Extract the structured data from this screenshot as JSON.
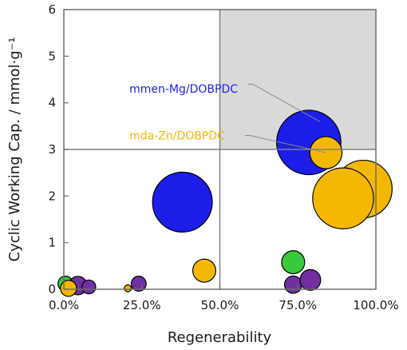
{
  "chart_data": {
    "type": "scatter",
    "subtype": "bubble",
    "xlabel": "Regenerability",
    "ylabel": "Cyclic Working Cap.  /  mmol·g⁻¹",
    "xlim": [
      0,
      100
    ],
    "ylim": [
      0,
      6
    ],
    "x_ticks": [
      "0.0%",
      "25.0%",
      "50.0%",
      "75.0%",
      "100.0%"
    ],
    "y_ticks": [
      "0",
      "1",
      "2",
      "3",
      "4",
      "5",
      "6"
    ],
    "grid": false,
    "reference_lines": {
      "x": 50,
      "y": 3
    },
    "highlight_region": {
      "x": [
        50,
        100
      ],
      "y": [
        3,
        6
      ],
      "color": "#d9d9d9"
    },
    "colors": {
      "blue": "#1d1dea",
      "gold": "#f5b800",
      "green": "#38c93a",
      "purple": "#7030a0"
    },
    "bubbles": [
      {
        "x": 0.5,
        "y": 0.12,
        "size": 1.3,
        "color": "green"
      },
      {
        "x": 2.5,
        "y": 0.04,
        "size": 1.0,
        "color": "purple"
      },
      {
        "x": 4.5,
        "y": 0.08,
        "size": 1.6,
        "color": "purple"
      },
      {
        "x": 8.0,
        "y": 0.05,
        "size": 1.2,
        "color": "purple"
      },
      {
        "x": 1.5,
        "y": 0.02,
        "size": 1.4,
        "color": "gold"
      },
      {
        "x": 20.5,
        "y": 0.02,
        "size": 0.6,
        "color": "gold"
      },
      {
        "x": 24.0,
        "y": 0.12,
        "size": 1.3,
        "color": "purple"
      },
      {
        "x": 38.0,
        "y": 1.87,
        "size": 5.2,
        "color": "blue"
      },
      {
        "x": 45.0,
        "y": 0.4,
        "size": 2.0,
        "color": "gold"
      },
      {
        "x": 73.5,
        "y": 0.58,
        "size": 2.0,
        "color": "green"
      },
      {
        "x": 73.5,
        "y": 0.1,
        "size": 1.5,
        "color": "purple"
      },
      {
        "x": 79.0,
        "y": 0.2,
        "size": 1.8,
        "color": "purple"
      },
      {
        "x": 96.0,
        "y": 2.15,
        "size": 5.0,
        "color": "gold"
      },
      {
        "x": 89.5,
        "y": 1.95,
        "size": 5.3,
        "color": "gold"
      },
      {
        "x": 78.5,
        "y": 3.15,
        "size": 5.6,
        "color": "blue"
      },
      {
        "x": 84.0,
        "y": 2.93,
        "size": 2.8,
        "color": "gold"
      }
    ],
    "annotations": [
      {
        "text": "mmen-Mg/DOBPDC",
        "color": "blue",
        "label_x": 21,
        "label_y": 4.3,
        "line_from": [
          59,
          4.4
        ],
        "line_to": [
          82,
          3.6
        ]
      },
      {
        "text": "mda-Zn/DOBPDC",
        "color": "gold",
        "label_x": 21,
        "label_y": 3.3,
        "line_from": [
          58,
          3.3
        ],
        "line_to": [
          84,
          2.93
        ]
      }
    ]
  }
}
